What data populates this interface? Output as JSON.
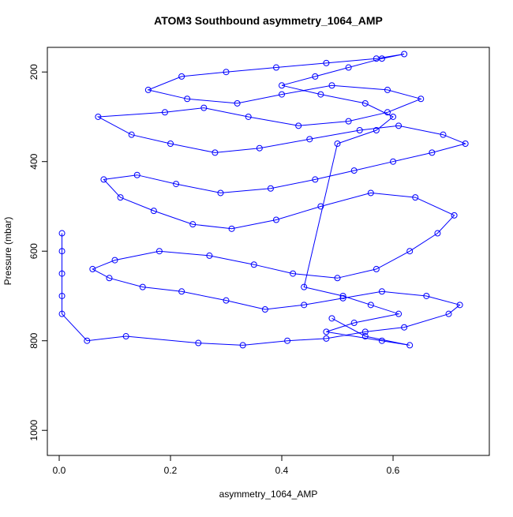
{
  "chart_data": {
    "type": "line",
    "title": "ATOM3 Southbound asymmetry_1064_AMP",
    "x_label": "asymmetry_1064_AMP",
    "y_label": "Pressure (mbar)",
    "marker": "circle",
    "grid": false,
    "series": [
      {
        "color": "#0000ff",
        "x": [
          0.005,
          0.005,
          0.005,
          0.005,
          0.005,
          0.05,
          0.12,
          0.25,
          0.33,
          0.41,
          0.48,
          0.55,
          0.62,
          0.7,
          0.72,
          0.66,
          0.58,
          0.51,
          0.44,
          0.37,
          0.3,
          0.22,
          0.15,
          0.09,
          0.06,
          0.1,
          0.18,
          0.27,
          0.35,
          0.42,
          0.5,
          0.57,
          0.63,
          0.68,
          0.71,
          0.64,
          0.56,
          0.47,
          0.39,
          0.31,
          0.24,
          0.17,
          0.11,
          0.08,
          0.14,
          0.21,
          0.29,
          0.38,
          0.46,
          0.53,
          0.6,
          0.67,
          0.73,
          0.69,
          0.61,
          0.54,
          0.45,
          0.36,
          0.28,
          0.2,
          0.13,
          0.07,
          0.19,
          0.26,
          0.34,
          0.43,
          0.52,
          0.59,
          0.65,
          0.59,
          0.49,
          0.4,
          0.32,
          0.23,
          0.16,
          0.22,
          0.3,
          0.39,
          0.48,
          0.57,
          0.62,
          0.58,
          0.52,
          0.46,
          0.4,
          0.47,
          0.55,
          0.6,
          0.57,
          0.5,
          0.44,
          0.51,
          0.56,
          0.61,
          0.53,
          0.48,
          0.58,
          0.63,
          0.55,
          0.49
        ],
        "values": [
          560,
          600,
          650,
          700,
          740,
          800,
          790,
          805,
          810,
          800,
          795,
          780,
          770,
          740,
          720,
          700,
          690,
          705,
          720,
          730,
          710,
          690,
          680,
          660,
          640,
          620,
          600,
          610,
          630,
          650,
          660,
          640,
          600,
          560,
          520,
          480,
          470,
          500,
          530,
          550,
          540,
          510,
          480,
          440,
          430,
          450,
          470,
          460,
          440,
          420,
          400,
          380,
          360,
          340,
          320,
          330,
          350,
          370,
          380,
          360,
          340,
          300,
          290,
          280,
          300,
          320,
          310,
          290,
          260,
          240,
          230,
          250,
          270,
          260,
          240,
          210,
          200,
          190,
          180,
          170,
          160,
          170,
          190,
          210,
          230,
          250,
          270,
          300,
          330,
          360,
          680,
          700,
          720,
          740,
          760,
          780,
          800,
          810,
          790,
          750
        ]
      }
    ],
    "xlim": [
      -0.0213,
      0.773
    ],
    "xticks": [
      {
        "value": 0,
        "label": "0.0"
      },
      0.2,
      0.4,
      0.6
    ],
    "ylim": [
      1056,
      145
    ],
    "yticks": [
      200,
      400,
      600,
      800,
      1000
    ]
  }
}
